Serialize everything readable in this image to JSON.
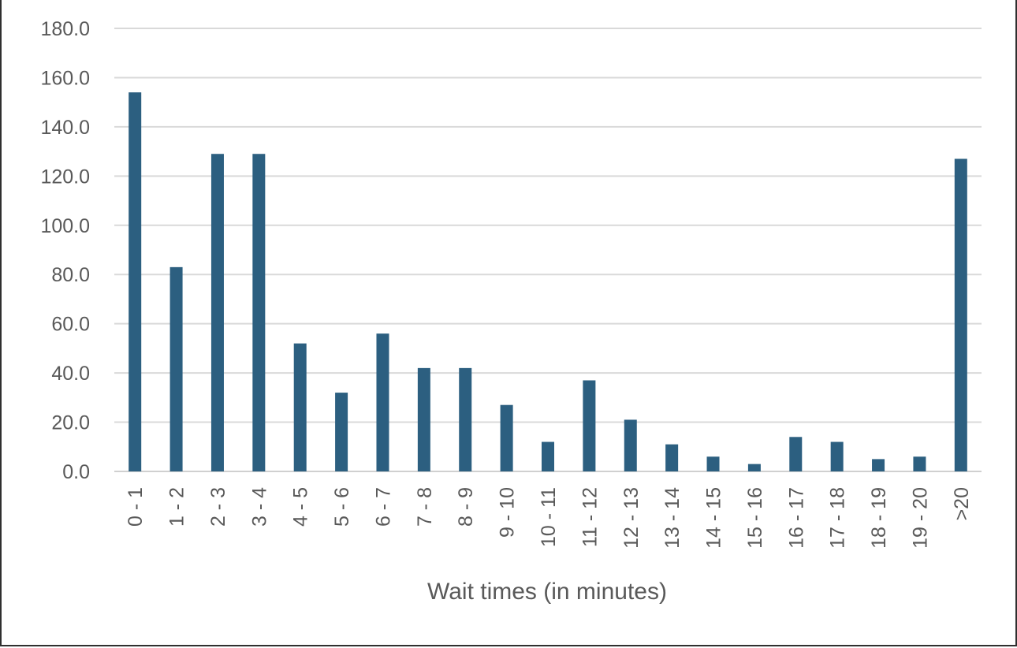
{
  "chart_data": {
    "type": "bar",
    "title": "",
    "xlabel": "Wait times (in minutes)",
    "ylabel": "",
    "ylim": [
      0,
      180
    ],
    "yticks": [
      "0.0",
      "20.0",
      "40.0",
      "60.0",
      "80.0",
      "100.0",
      "120.0",
      "140.0",
      "160.0",
      "180.0"
    ],
    "grid": true,
    "legend": "none",
    "bar_color": "#2c5f80",
    "categories": [
      "0 - 1",
      "1 - 2",
      "2 - 3",
      "3 - 4",
      "4 - 5",
      "5 - 6",
      "6 - 7",
      "7 - 8",
      "8 - 9",
      "9 - 10",
      "10 - 11",
      "11 - 12",
      "12 - 13",
      "13 - 14",
      "14 - 15",
      "15 - 16",
      "16 - 17",
      "17 - 18",
      "18 - 19",
      "19 - 20",
      ">20"
    ],
    "values": [
      154,
      83,
      129,
      129,
      52,
      32,
      56,
      42,
      42,
      27,
      12,
      37,
      21,
      11,
      6,
      3,
      14,
      12,
      5,
      6,
      127
    ]
  }
}
